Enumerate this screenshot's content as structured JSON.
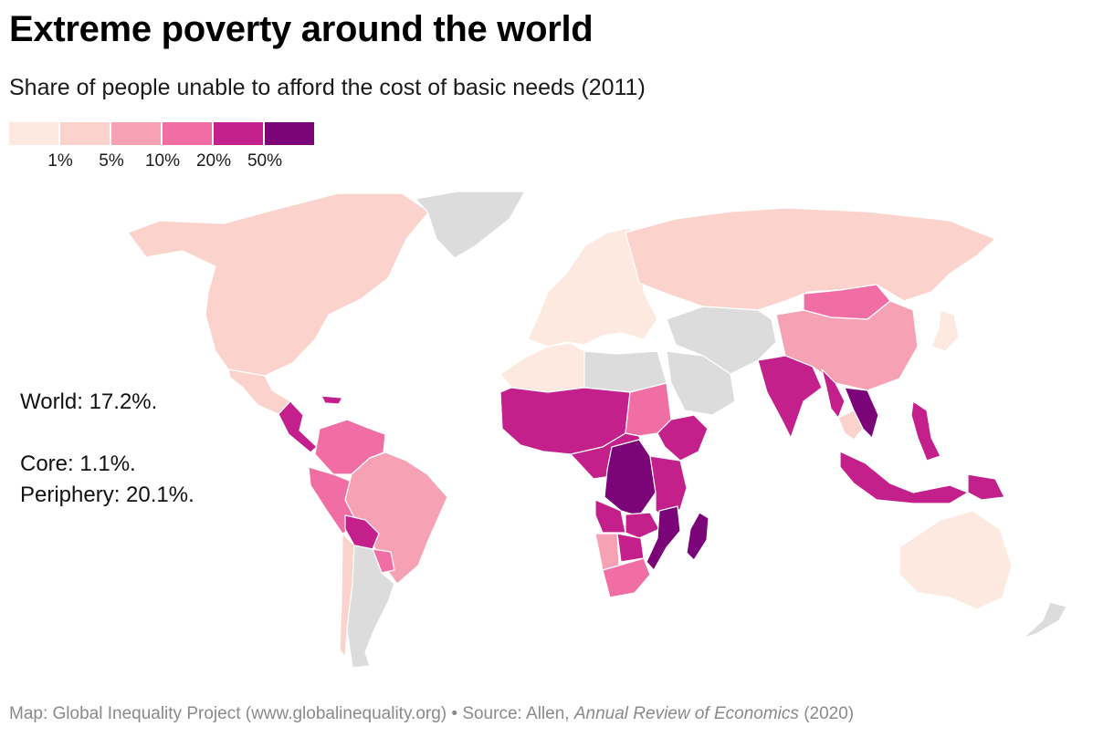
{
  "header": {
    "title": "Extreme poverty around the world",
    "subtitle": "Share of people unable to afford the cost of basic needs (2011)"
  },
  "legend": {
    "colors": [
      "#fde9df",
      "#fbd3cc",
      "#f7a2b4",
      "#f06ea4",
      "#c4208c",
      "#7b0478"
    ],
    "ticks": [
      "1%",
      "5%",
      "10%",
      "20%",
      "50%"
    ]
  },
  "map": {
    "no_data_color": "#dcdcdc",
    "regions": [
      {
        "name": "North America",
        "bin": 1
      },
      {
        "name": "Greenland",
        "bin": -1
      },
      {
        "name": "Mexico",
        "bin": 1
      },
      {
        "name": "Central America",
        "bin": 4
      },
      {
        "name": "Caribbean",
        "bin": 4
      },
      {
        "name": "Colombia & Venezuela",
        "bin": 3
      },
      {
        "name": "Peru & Ecuador",
        "bin": 3
      },
      {
        "name": "Brazil",
        "bin": 2
      },
      {
        "name": "Bolivia",
        "bin": 4
      },
      {
        "name": "Paraguay",
        "bin": 3
      },
      {
        "name": "Chile",
        "bin": 1
      },
      {
        "name": "Argentina",
        "bin": -1
      },
      {
        "name": "Europe",
        "bin": 0
      },
      {
        "name": "Russia",
        "bin": 1
      },
      {
        "name": "North Africa",
        "bin": 0
      },
      {
        "name": "Libya & Egypt",
        "bin": -1
      },
      {
        "name": "Arabian Peninsula",
        "bin": -1
      },
      {
        "name": "West Africa",
        "bin": 4
      },
      {
        "name": "Sudan",
        "bin": 3
      },
      {
        "name": "Ethiopia",
        "bin": 4
      },
      {
        "name": "Central Africa",
        "bin": 4
      },
      {
        "name": "Congo",
        "bin": 5
      },
      {
        "name": "East Africa",
        "bin": 4
      },
      {
        "name": "Angola",
        "bin": 4
      },
      {
        "name": "Zambia",
        "bin": 4
      },
      {
        "name": "Mozambique",
        "bin": 5
      },
      {
        "name": "Namibia",
        "bin": 2
      },
      {
        "name": "Botswana",
        "bin": 4
      },
      {
        "name": "South Africa",
        "bin": 3
      },
      {
        "name": "Madagascar",
        "bin": 5
      },
      {
        "name": "Iran & Central Asia",
        "bin": -1
      },
      {
        "name": "Mongolia",
        "bin": 3
      },
      {
        "name": "China",
        "bin": 2
      },
      {
        "name": "India",
        "bin": 4
      },
      {
        "name": "Myanmar",
        "bin": 4
      },
      {
        "name": "Indochina",
        "bin": 5
      },
      {
        "name": "Thailand",
        "bin": 1
      },
      {
        "name": "Philippines",
        "bin": 4
      },
      {
        "name": "Indonesia",
        "bin": 4
      },
      {
        "name": "Papua New Guinea",
        "bin": 4
      },
      {
        "name": "Japan",
        "bin": 0
      },
      {
        "name": "Australia",
        "bin": 0
      },
      {
        "name": "New Zealand",
        "bin": -1
      }
    ]
  },
  "stats": {
    "world": "World: 17.2%.",
    "core": "Core: 1.1%.",
    "periphery": "Periphery: 20.1%."
  },
  "footer": {
    "prefix": "Map: Global Inequality Project (www.globalinequality.org) • Source: Allen, ",
    "journal": "Annual Review of Economics",
    "suffix": " (2020)"
  }
}
